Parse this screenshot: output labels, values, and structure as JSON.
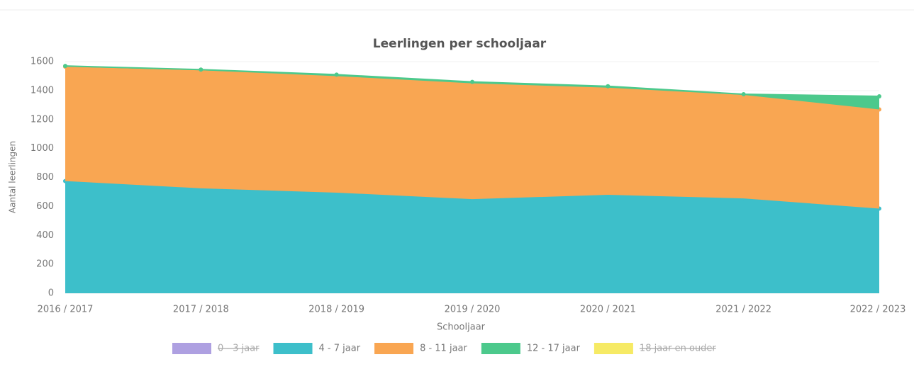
{
  "chart_data": {
    "type": "area",
    "stacked": true,
    "title": "Leerlingen per schooljaar",
    "x_label": "Schooljaar",
    "y_label": "Aantal leerlingen",
    "categories": [
      "2016 / 2017",
      "2017 / 2018",
      "2018 / 2019",
      "2019 / 2020",
      "2020 / 2021",
      "2021 / 2022",
      "2022 / 2023"
    ],
    "series": [
      {
        "name": "0 - 3 jaar",
        "color": "#a08fdc",
        "visible": false,
        "values": [
          null,
          null,
          null,
          null,
          null,
          null,
          null
        ]
      },
      {
        "name": "4 - 7 jaar",
        "color": "#3dbfca",
        "visible": true,
        "values": [
          775,
          725,
          695,
          650,
          680,
          655,
          585
        ]
      },
      {
        "name": "8 - 11 jaar",
        "color": "#f9a652",
        "visible": true,
        "values": [
          790,
          815,
          805,
          800,
          740,
          715,
          685
        ]
      },
      {
        "name": "12 - 17 jaar",
        "color": "#4cc98c",
        "visible": true,
        "values": [
          5,
          5,
          10,
          10,
          10,
          5,
          90
        ]
      },
      {
        "name": "18 jaar en ouder",
        "color": "#f4e64a",
        "visible": false,
        "values": [
          null,
          null,
          null,
          null,
          null,
          null,
          null
        ]
      }
    ],
    "ylim": [
      0,
      1600
    ],
    "yticks": [
      0,
      200,
      400,
      600,
      800,
      1000,
      1200,
      1400,
      1600
    ],
    "legend": "bottom"
  }
}
